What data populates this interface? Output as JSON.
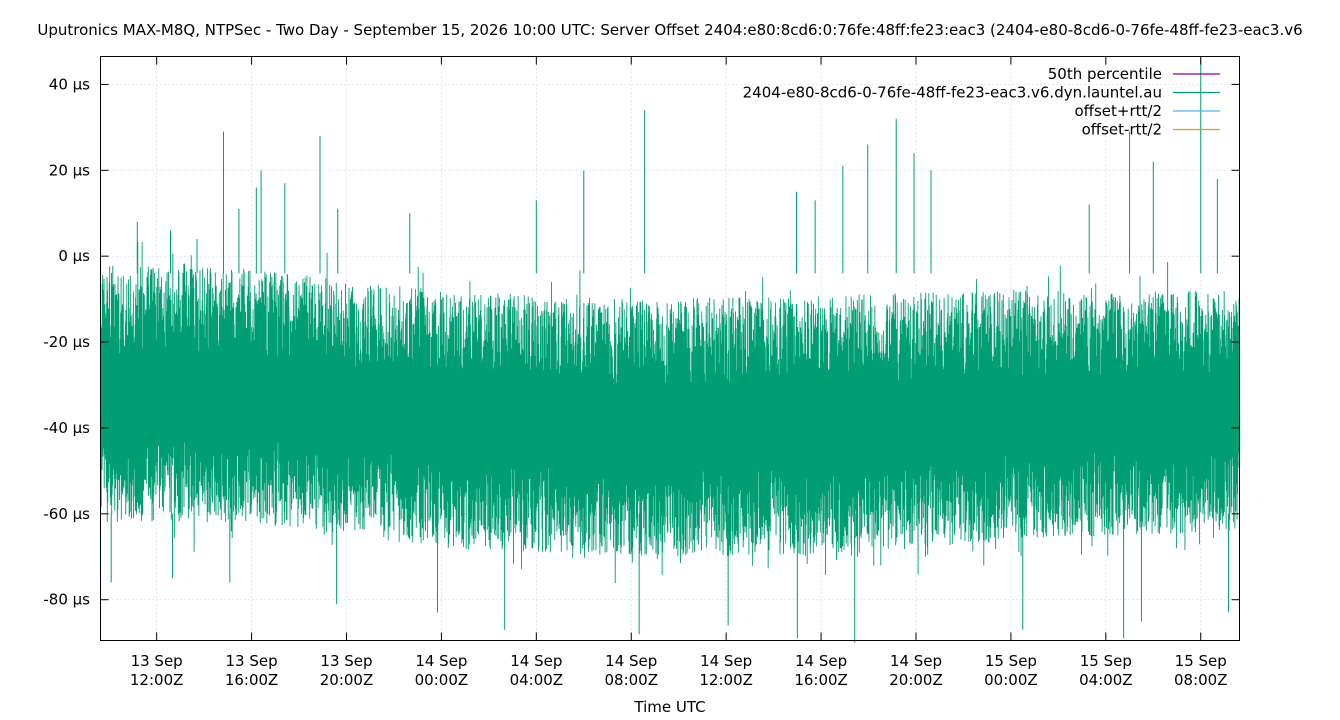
{
  "chart_data": {
    "type": "line",
    "title": "Uputronics MAX-M8Q, NTPSec - Two Day - September 15, 2026 10:00 UTC: Server Offset 2404:e80:8cd6:0:76fe:48ff:fe23:eac3 (2404-e80-8cd6-0-76fe-48ff-fe23-eac3.v6",
    "xlabel": "Time UTC",
    "ylabel": "",
    "x_range": [
      "2026-09-13T09:38Z",
      "2026-09-15T09:38Z"
    ],
    "ylim": [
      -89.5,
      46.5
    ],
    "y_unit": "µs",
    "grid": true,
    "legend_position": "top-right",
    "y_ticks": [
      {
        "value": 40,
        "label": "40 µs"
      },
      {
        "value": 20,
        "label": "20 µs"
      },
      {
        "value": 0,
        "label": "0 µs"
      },
      {
        "value": -20,
        "label": "-20 µs"
      },
      {
        "value": -40,
        "label": "-40 µs"
      },
      {
        "value": -60,
        "label": "-60 µs"
      },
      {
        "value": -80,
        "label": "-80 µs"
      }
    ],
    "x_ticks": [
      {
        "value": "2026-09-13T12:00Z",
        "line1": "13 Sep",
        "line2": "12:00Z"
      },
      {
        "value": "2026-09-13T16:00Z",
        "line1": "13 Sep",
        "line2": "16:00Z"
      },
      {
        "value": "2026-09-13T20:00Z",
        "line1": "13 Sep",
        "line2": "20:00Z"
      },
      {
        "value": "2026-09-14T00:00Z",
        "line1": "14 Sep",
        "line2": "00:00Z"
      },
      {
        "value": "2026-09-14T04:00Z",
        "line1": "14 Sep",
        "line2": "04:00Z"
      },
      {
        "value": "2026-09-14T08:00Z",
        "line1": "14 Sep",
        "line2": "08:00Z"
      },
      {
        "value": "2026-09-14T12:00Z",
        "line1": "14 Sep",
        "line2": "12:00Z"
      },
      {
        "value": "2026-09-14T16:00Z",
        "line1": "14 Sep",
        "line2": "16:00Z"
      },
      {
        "value": "2026-09-14T20:00Z",
        "line1": "14 Sep",
        "line2": "20:00Z"
      },
      {
        "value": "2026-09-15T00:00Z",
        "line1": "15 Sep",
        "line2": "00:00Z"
      },
      {
        "value": "2026-09-15T04:00Z",
        "line1": "15 Sep",
        "line2": "04:00Z"
      },
      {
        "value": "2026-09-15T08:00Z",
        "line1": "15 Sep",
        "line2": "08:00Z"
      }
    ],
    "series": [
      {
        "name": "50th percentile",
        "color": "#94008b",
        "values": []
      },
      {
        "name": "2404-e80-8cd6-0-76fe-48ff-fe23-eac3.v6.dyn.launtel.au",
        "color": "#009e73",
        "style": "dense noisy offset trace",
        "band_envelope": [
          {
            "x": "2026-09-13T09:38Z",
            "high": -2,
            "low": -62
          },
          {
            "x": "2026-09-13T16:00Z",
            "high": -3,
            "low": -62
          },
          {
            "x": "2026-09-14T00:00Z",
            "high": -8,
            "low": -68
          },
          {
            "x": "2026-09-14T08:00Z",
            "high": -10,
            "low": -70
          },
          {
            "x": "2026-09-14T16:00Z",
            "high": -9,
            "low": -70
          },
          {
            "x": "2026-09-15T00:00Z",
            "high": -8,
            "low": -66
          },
          {
            "x": "2026-09-15T09:38Z",
            "high": -8,
            "low": -64
          }
        ],
        "spikes": [
          {
            "x": "2026-09-13T11:11Z",
            "y": 8
          },
          {
            "x": "2026-09-13T12:35Z",
            "y": 6
          },
          {
            "x": "2026-09-13T13:42Z",
            "y": 4
          },
          {
            "x": "2026-09-13T14:49Z",
            "y": 29
          },
          {
            "x": "2026-09-13T15:28Z",
            "y": 11
          },
          {
            "x": "2026-09-13T16:12Z",
            "y": 16
          },
          {
            "x": "2026-09-13T16:24Z",
            "y": 20
          },
          {
            "x": "2026-09-13T17:24Z",
            "y": 17
          },
          {
            "x": "2026-09-13T18:53Z",
            "y": 28
          },
          {
            "x": "2026-09-13T19:38Z",
            "y": 11
          },
          {
            "x": "2026-09-13T22:40Z",
            "y": 10
          },
          {
            "x": "2026-09-14T04:00Z",
            "y": 13
          },
          {
            "x": "2026-09-14T06:00Z",
            "y": 20
          },
          {
            "x": "2026-09-14T08:34Z",
            "y": 34
          },
          {
            "x": "2026-09-14T14:58Z",
            "y": 15
          },
          {
            "x": "2026-09-14T15:45Z",
            "y": 13
          },
          {
            "x": "2026-09-14T16:55Z",
            "y": 21
          },
          {
            "x": "2026-09-14T17:58Z",
            "y": 26
          },
          {
            "x": "2026-09-14T19:10Z",
            "y": 32
          },
          {
            "x": "2026-09-14T19:55Z",
            "y": 24
          },
          {
            "x": "2026-09-14T20:38Z",
            "y": 20
          },
          {
            "x": "2026-09-15T03:18Z",
            "y": 12
          },
          {
            "x": "2026-09-15T05:00Z",
            "y": 29
          },
          {
            "x": "2026-09-15T06:00Z",
            "y": 22
          },
          {
            "x": "2026-09-15T08:00Z",
            "y": 46
          },
          {
            "x": "2026-09-15T08:42Z",
            "y": 18
          },
          {
            "x": "2026-09-13T10:05Z",
            "y": -76
          },
          {
            "x": "2026-09-13T12:40Z",
            "y": -75
          },
          {
            "x": "2026-09-13T15:05Z",
            "y": -76
          },
          {
            "x": "2026-09-13T19:35Z",
            "y": -81
          },
          {
            "x": "2026-09-13T23:50Z",
            "y": -83
          },
          {
            "x": "2026-09-14T02:40Z",
            "y": -87
          },
          {
            "x": "2026-09-14T08:20Z",
            "y": -88
          },
          {
            "x": "2026-09-14T12:05Z",
            "y": -86
          },
          {
            "x": "2026-09-14T15:00Z",
            "y": -89
          },
          {
            "x": "2026-09-14T17:25Z",
            "y": -90
          },
          {
            "x": "2026-09-15T00:30Z",
            "y": -87
          },
          {
            "x": "2026-09-15T04:45Z",
            "y": -89
          },
          {
            "x": "2026-09-15T05:30Z",
            "y": -85
          },
          {
            "x": "2026-09-15T09:10Z",
            "y": -83
          }
        ]
      },
      {
        "name": "offset+rtt/2",
        "color": "#56b4e9",
        "values": []
      },
      {
        "name": "offset-rtt/2",
        "color": "#e69f00",
        "values": []
      }
    ]
  }
}
